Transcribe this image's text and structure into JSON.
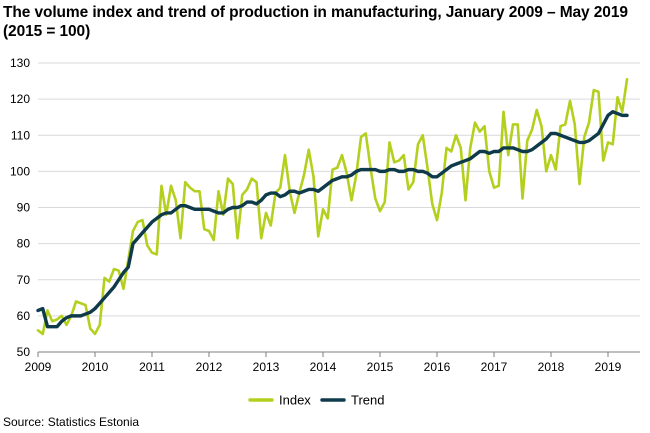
{
  "title": "The volume index and trend of production in manufacturing, January 2009 – May 2019 (2015 = 100)",
  "source": "Source: Statistics Estonia",
  "colors": {
    "index": "#b5cf1e",
    "trend": "#0e3a4a",
    "grid": "#d9d9d9",
    "axis": "#7f7f7f"
  },
  "chart_data": {
    "type": "line",
    "ylim": [
      50,
      130
    ],
    "yticks": [
      50,
      60,
      70,
      80,
      90,
      100,
      110,
      120,
      130
    ],
    "xticks": [
      "2009",
      "2010",
      "2011",
      "2012",
      "2013",
      "2014",
      "2015",
      "2016",
      "2017",
      "2018",
      "2019"
    ],
    "period": "January 2009 – May 2019",
    "grid": true,
    "legend": "bottom",
    "series": [
      {
        "name": "Index",
        "values": [
          56.0,
          55.0,
          61.5,
          58.5,
          59.0,
          60.0,
          57.5,
          60.0,
          64.0,
          63.5,
          63.0,
          56.5,
          55.0,
          57.5,
          70.5,
          69.5,
          73.0,
          72.5,
          67.5,
          75.5,
          83.5,
          86.0,
          86.5,
          79.5,
          77.5,
          77.0,
          96.0,
          88.0,
          96.0,
          92.0,
          81.5,
          97.0,
          95.5,
          94.5,
          94.5,
          84.0,
          83.5,
          81.0,
          94.5,
          88.0,
          98.0,
          96.5,
          81.5,
          93.5,
          95.0,
          98.0,
          97.0,
          81.5,
          88.5,
          85.0,
          94.0,
          95.5,
          104.5,
          94.5,
          88.5,
          94.0,
          99.0,
          106.0,
          98.5,
          82.0,
          89.5,
          87.0,
          100.5,
          101.0,
          104.5,
          99.5,
          92.0,
          99.0,
          109.5,
          110.5,
          101.0,
          92.5,
          89.0,
          91.5,
          108.0,
          102.5,
          103.0,
          104.5,
          95.0,
          97.0,
          107.5,
          110.0,
          101.0,
          91.0,
          86.5,
          94.0,
          106.5,
          105.5,
          110.0,
          106.5,
          92.0,
          106.5,
          113.5,
          111.0,
          112.5,
          100.0,
          95.5,
          96.0,
          116.5,
          104.5,
          113.0,
          113.0,
          92.5,
          108.5,
          111.5,
          117.0,
          112.5,
          100.0,
          104.5,
          100.5,
          112.5,
          113.0,
          119.5,
          113.0,
          96.5,
          109.5,
          113.5,
          122.5,
          122.0,
          103.0,
          108.0,
          107.5,
          120.5,
          116.5,
          125.5
        ]
      },
      {
        "name": "Trend",
        "values": [
          61.5,
          62.0,
          57.0,
          57.0,
          57.0,
          58.5,
          59.5,
          60.0,
          60.0,
          60.0,
          60.5,
          61.0,
          62.0,
          63.5,
          65.0,
          66.5,
          68.0,
          70.0,
          72.0,
          73.5,
          80.0,
          81.5,
          83.0,
          84.5,
          86.0,
          87.0,
          88.0,
          88.5,
          88.5,
          89.5,
          90.5,
          90.5,
          90.0,
          89.5,
          89.5,
          89.5,
          89.5,
          89.0,
          88.5,
          88.5,
          89.5,
          90.0,
          90.0,
          90.5,
          91.5,
          91.5,
          91.0,
          92.0,
          93.5,
          94.0,
          94.0,
          93.0,
          93.5,
          94.5,
          94.5,
          94.0,
          94.5,
          95.0,
          95.0,
          94.5,
          95.5,
          96.5,
          97.5,
          98.0,
          98.5,
          98.5,
          99.0,
          100.0,
          100.5,
          100.5,
          100.5,
          100.5,
          100.0,
          100.0,
          100.5,
          100.5,
          100.0,
          100.0,
          100.5,
          100.5,
          100.0,
          100.0,
          99.5,
          98.5,
          98.5,
          99.5,
          100.5,
          101.5,
          102.0,
          102.5,
          103.0,
          103.5,
          104.5,
          105.5,
          105.5,
          105.0,
          105.5,
          105.5,
          106.5,
          106.5,
          106.5,
          106.0,
          105.5,
          105.5,
          106.0,
          107.0,
          108.0,
          109.0,
          110.5,
          110.5,
          110.0,
          109.5,
          109.0,
          108.5,
          108.0,
          108.0,
          108.5,
          109.5,
          110.5,
          113.0,
          115.5,
          116.5,
          116.0,
          115.5,
          115.5
        ]
      }
    ]
  }
}
